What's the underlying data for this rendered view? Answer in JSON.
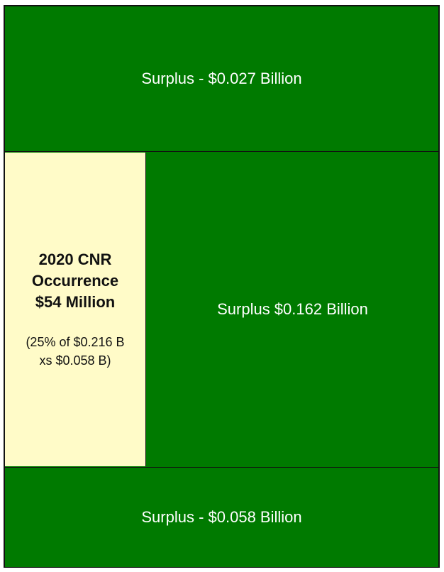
{
  "colors": {
    "surplus": "#007a00",
    "occurrence": "#fffbc8",
    "border": "#111111",
    "text_light": "#ffffff",
    "text_dark": "#111111"
  },
  "layers": {
    "top": {
      "label": "Surplus - $0.027 Billion"
    },
    "middle_left": {
      "title_line1": "2020 CNR",
      "title_line2": "Occurrence",
      "title_line3": "$54 Million",
      "detail_line1": "(25% of $0.216 B",
      "detail_line2": "xs $0.058 B)"
    },
    "middle_right": {
      "label": "Surplus $0.162 Billion"
    },
    "bottom": {
      "label": "Surplus - $0.058 Billion"
    }
  }
}
